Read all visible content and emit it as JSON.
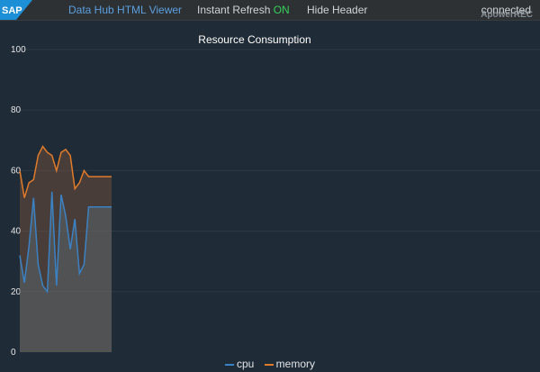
{
  "header": {
    "logo_text": "SAP",
    "title": "Data Hub HTML Viewer",
    "refresh_label": "Instant Refresh",
    "refresh_state": "ON",
    "hide_header_label": "Hide Header",
    "status": "connected",
    "watermark": "ApowerREC"
  },
  "colors": {
    "background": "#1f2b36",
    "topbar": "#2e3133",
    "accent": "#5a9fe0",
    "on": "#32d05a",
    "cpu": "#3b82c4",
    "memory": "#e07b2a"
  },
  "chart_data": {
    "type": "area",
    "title": "Resource Consumption",
    "ylim": [
      0,
      100
    ],
    "yticks": [
      0,
      20,
      40,
      60,
      80,
      100
    ],
    "grid": true,
    "legend_position": "bottom",
    "x": [
      0,
      1,
      2,
      3,
      4,
      5,
      6,
      7,
      8,
      9,
      10,
      11,
      12,
      13,
      14,
      15,
      16,
      17,
      18,
      19,
      20
    ],
    "series": [
      {
        "name": "cpu",
        "values": [
          32,
          23,
          35,
          51,
          29,
          22,
          20,
          53,
          22,
          52,
          45,
          34,
          44,
          26,
          29,
          48,
          48,
          48,
          48,
          48,
          48
        ]
      },
      {
        "name": "memory",
        "values": [
          60,
          51,
          56,
          57,
          65,
          68,
          66,
          65,
          60,
          66,
          67,
          65,
          54,
          56,
          60,
          58,
          58,
          58,
          58,
          58,
          58
        ]
      }
    ]
  }
}
